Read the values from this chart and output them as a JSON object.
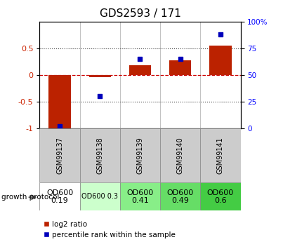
{
  "title": "GDS2593 / 171",
  "samples": [
    "GSM99137",
    "GSM99138",
    "GSM99139",
    "GSM99140",
    "GSM99141"
  ],
  "log2_ratio": [
    -1.0,
    -0.04,
    0.18,
    0.27,
    0.55
  ],
  "percentile_rank": [
    2,
    30,
    65,
    65,
    88
  ],
  "ylim_left": [
    -1.0,
    1.0
  ],
  "ylim_right": [
    0,
    100
  ],
  "bar_color": "#bb2200",
  "dot_color": "#0000bb",
  "hline_color": "#cc0000",
  "dotted_line_color": "#333333",
  "growth_protocol": [
    "OD600\n0.19",
    "OD600 0.3",
    "OD600\n0.41",
    "OD600\n0.49",
    "OD600\n0.6"
  ],
  "cell_colors": [
    "#ffffff",
    "#ccffcc",
    "#88ee88",
    "#66dd66",
    "#44cc44"
  ],
  "cell_fontsize": [
    8,
    7,
    8,
    8,
    8
  ],
  "legend_red_label": "log2 ratio",
  "legend_blue_label": "percentile rank within the sample",
  "growth_protocol_label": "growth protocol",
  "left_yticks": [
    -1.0,
    -0.5,
    0.0,
    0.5
  ],
  "left_yticklabels": [
    "-1",
    "-0.5",
    "0",
    "0.5"
  ],
  "right_yticks": [
    0,
    25,
    50,
    75,
    100
  ],
  "right_yticklabels": [
    "0",
    "25",
    "50",
    "75",
    "100%"
  ]
}
